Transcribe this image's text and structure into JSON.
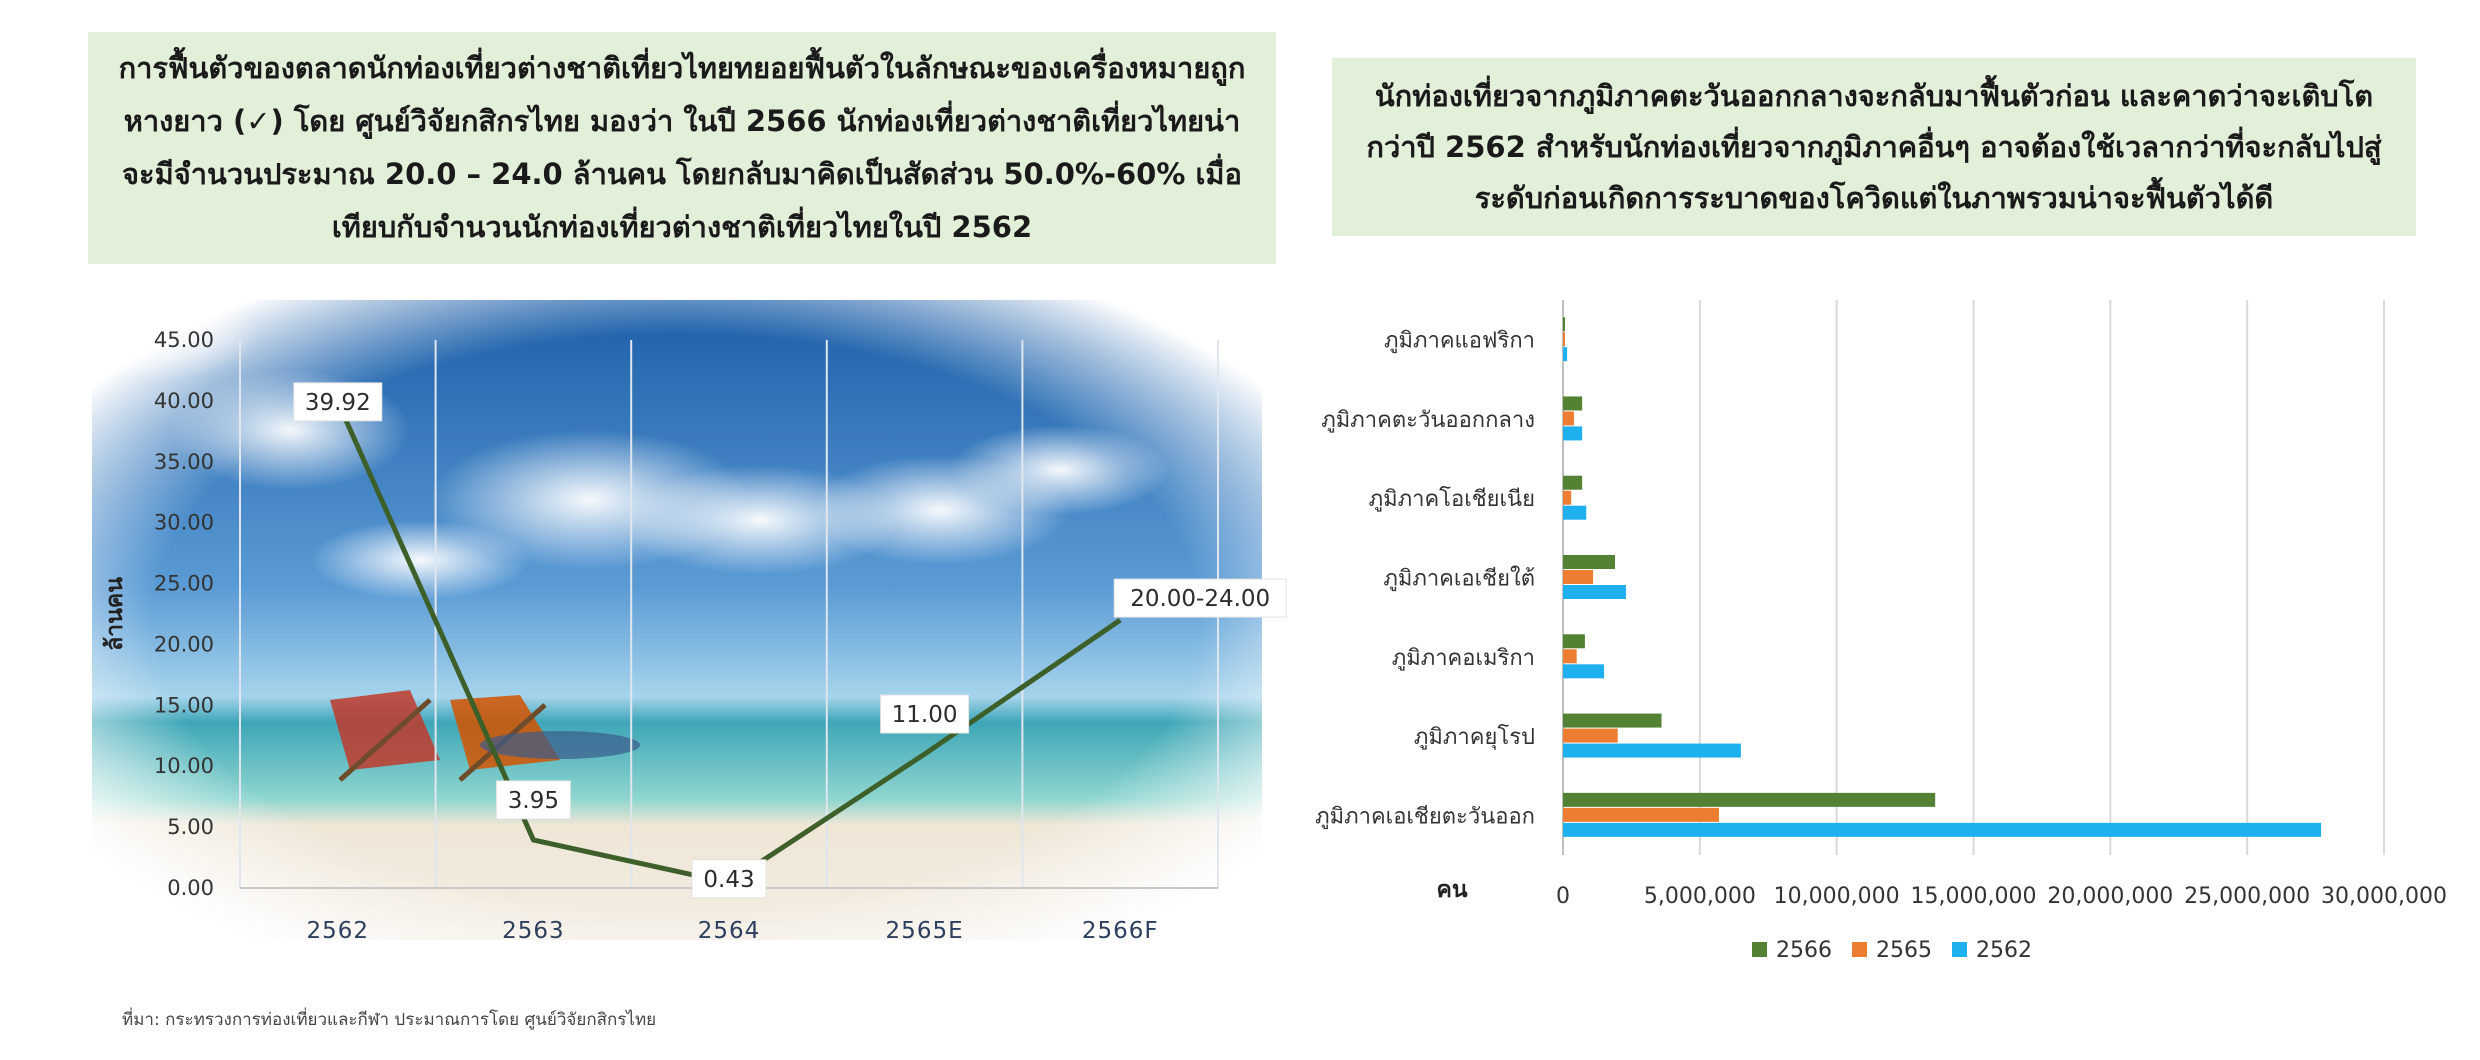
{
  "left_panel": {
    "text": "การฟื้นตัวของตลาดนักท่องเที่ยวต่างชาติเที่ยวไทยทยอยฟื้นตัวในลักษณะของเครื่องหมายถูกหางยาว (✓) โดย ศูนย์วิจัยกสิกรไทย มองว่า ในปี 2566 นักท่องเที่ยวต่างชาติเที่ยวไทยน่าจะมีจำนวนประมาณ 20.0 – 24.0 ล้านคน โดยกลับมาคิดเป็นสัดส่วน 50.0%-60% เมื่อเทียบกับจำนวนนักท่องเที่ยวต่างชาติเที่ยวไทยในปี 2562"
  },
  "right_panel": {
    "text": "นักท่องเที่ยวจากภูมิภาคตะวันออกกลางจะกลับมาฟื้นตัวก่อน และคาดว่าจะเติบโตกว่าปี 2562 สำหรับนักท่องเที่ยวจากภูมิภาคอื่นๆ อาจต้องใช้เวลากว่าที่จะกลับไปสู่ระดับก่อนเกิดการระบาดของโควิดแต่ในภาพรวมน่าจะฟื้นตัวได้ดี"
  },
  "source": "ที่มา: กระทรวงการท่องเที่ยวและกีฬา ประมาณการโดย ศูนย์วิจัยกสิกรไทย",
  "chart_data": [
    {
      "type": "line",
      "x": [
        "2562",
        "2563",
        "2564",
        "2565E",
        "2566F"
      ],
      "values": [
        39.92,
        3.95,
        0.43,
        11.0,
        22.0
      ],
      "data_labels": [
        "39.92",
        "3.95",
        "0.43",
        "11.00",
        "20.00-24.00"
      ],
      "ylabel": "ล้านคน",
      "ylim": [
        0,
        45
      ],
      "yticks": [
        "0.00",
        "5.00",
        "10.00",
        "15.00",
        "20.00",
        "25.00",
        "30.00",
        "35.00",
        "40.00",
        "45.00"
      ],
      "grid": "vertical",
      "line_color": "#3d5f2a",
      "background": "beach photo"
    },
    {
      "type": "bar",
      "orientation": "horizontal",
      "categories": [
        "ภูมิภาคแอฟริกา",
        "ภูมิภาคตะวันออกกลาง",
        "ภูมิภาคโอเชียเนีย",
        "ภูมิภาคเอเชียใต้",
        "ภูมิภาคอเมริกา",
        "ภูมิภาคยุโรป",
        "ภูมิภาคเอเชียตะวันออก"
      ],
      "series": [
        {
          "name": "2566",
          "color": "#548235",
          "values": [
            50000,
            700000,
            700000,
            1900000,
            800000,
            3600000,
            13600000
          ]
        },
        {
          "name": "2565",
          "color": "#ed7d31",
          "values": [
            30000,
            400000,
            300000,
            1100000,
            500000,
            2000000,
            5700000
          ]
        },
        {
          "name": "2562",
          "color": "#1fb0f0",
          "values": [
            150000,
            700000,
            850000,
            2300000,
            1500000,
            6500000,
            27700000
          ]
        }
      ],
      "ylabel": "คน",
      "xlim": [
        0,
        30000000
      ],
      "xticks": [
        "0",
        "5,000,000",
        "10,000,000",
        "15,000,000",
        "20,000,000",
        "25,000,000",
        "30,000,000"
      ],
      "grid": "vertical",
      "legend_position": "bottom"
    }
  ]
}
